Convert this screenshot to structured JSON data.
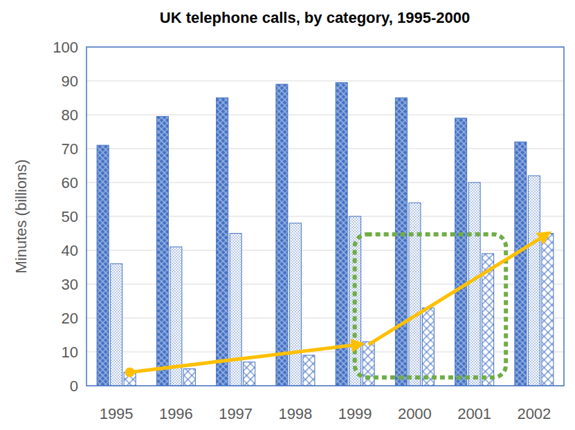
{
  "chart_data": {
    "type": "bar",
    "title": "UK telephone calls, by category, 1995-2000",
    "ylabel": "Minutes (billions)",
    "categories": [
      "1995",
      "1996",
      "1997",
      "1998",
      "1999",
      "2000",
      "2001",
      "2002"
    ],
    "series": [
      {
        "color": "#4472c4",
        "values": [
          71,
          79.5,
          85,
          89,
          89.5,
          85,
          79,
          72
        ]
      },
      {
        "color": "#4472c4",
        "values": [
          36,
          41,
          45,
          48,
          50,
          54,
          60,
          62
        ]
      },
      {
        "color": "#4472c4",
        "values": [
          4,
          5,
          7,
          9,
          13,
          23,
          39,
          45
        ]
      }
    ],
    "ylim": [
      0,
      100
    ],
    "yticks": [
      0,
      10,
      20,
      30,
      40,
      50,
      60,
      70,
      80,
      90,
      100
    ],
    "grid": true
  }
}
